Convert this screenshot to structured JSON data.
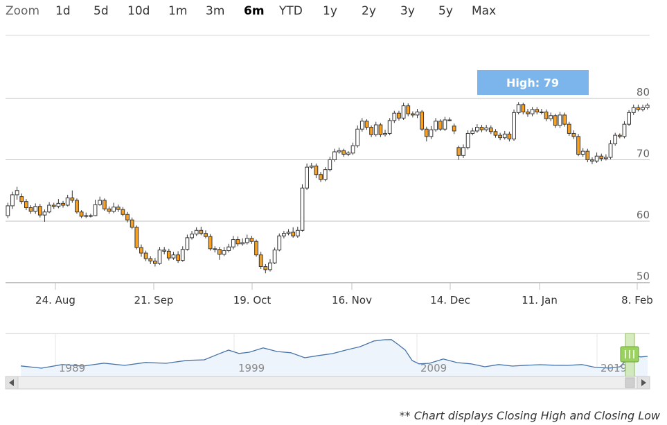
{
  "zoom": {
    "label": "Zoom",
    "buttons": [
      "1d",
      "5d",
      "10d",
      "1m",
      "3m",
      "6m",
      "YTD",
      "1y",
      "2y",
      "3y",
      "5y",
      "Max"
    ],
    "selected": "6m"
  },
  "tooltip": {
    "text": "High: 79"
  },
  "footnote": "** Chart displays Closing High and Closing Low",
  "chart_data": {
    "type": "candlestick",
    "x_ticks": [
      "24. Aug",
      "21. Sep",
      "19. Oct",
      "16. Nov",
      "14. Dec",
      "11. Jan",
      "8. Feb"
    ],
    "y_ticks": [
      50,
      60,
      70,
      80
    ],
    "ylim": [
      49.5,
      82
    ],
    "colors": {
      "up": "#ffffff",
      "down": "#f7a122",
      "line": "#333333",
      "grid": "#c0c0c0"
    },
    "candles": [
      [
        60.9,
        62.5,
        60.5,
        63.0
      ],
      [
        62.5,
        64.3,
        62.0,
        64.8
      ],
      [
        64.3,
        65.0,
        63.5,
        65.6
      ],
      [
        64.0,
        63.2,
        62.8,
        64.5
      ],
      [
        63.2,
        62.2,
        61.8,
        63.6
      ],
      [
        62.2,
        61.6,
        61.2,
        62.6
      ],
      [
        61.6,
        62.4,
        61.2,
        62.9
      ],
      [
        62.4,
        61.0,
        60.6,
        62.8
      ],
      [
        61.0,
        61.5,
        59.9,
        61.9
      ],
      [
        61.5,
        62.6,
        61.3,
        63.1
      ],
      [
        62.6,
        62.4,
        62.0,
        63.0
      ],
      [
        62.4,
        62.9,
        62.1,
        63.6
      ],
      [
        62.9,
        62.6,
        62.2,
        63.3
      ],
      [
        62.6,
        63.8,
        62.4,
        64.3
      ],
      [
        63.8,
        63.4,
        63.0,
        65.0
      ],
      [
        63.4,
        61.5,
        61.2,
        63.7
      ],
      [
        61.5,
        60.8,
        60.5,
        61.8
      ],
      [
        60.8,
        60.9,
        60.5,
        61.4
      ],
      [
        60.9,
        60.9,
        60.6,
        61.2
      ],
      [
        60.9,
        62.7,
        60.8,
        63.5
      ],
      [
        62.7,
        63.4,
        62.5,
        64.0
      ],
      [
        63.4,
        62.0,
        61.7,
        63.7
      ],
      [
        62.0,
        61.6,
        61.2,
        62.4
      ],
      [
        61.6,
        62.3,
        61.3,
        63.0
      ],
      [
        62.3,
        61.9,
        61.5,
        62.7
      ],
      [
        61.9,
        61.1,
        60.8,
        62.3
      ],
      [
        61.1,
        60.2,
        59.8,
        61.5
      ],
      [
        60.2,
        59.0,
        58.7,
        60.6
      ],
      [
        59.0,
        55.7,
        55.4,
        59.3
      ],
      [
        55.7,
        54.8,
        54.2,
        56.2
      ],
      [
        54.8,
        53.9,
        53.5,
        55.2
      ],
      [
        53.9,
        53.5,
        53.0,
        54.3
      ],
      [
        53.5,
        53.1,
        52.6,
        54.0
      ],
      [
        53.1,
        55.3,
        52.9,
        55.8
      ],
      [
        55.3,
        55.1,
        54.6,
        55.8
      ],
      [
        55.1,
        54.0,
        53.6,
        55.5
      ],
      [
        54.0,
        54.5,
        53.7,
        55.0
      ],
      [
        54.5,
        53.6,
        53.2,
        55.1
      ],
      [
        53.6,
        55.4,
        53.4,
        55.9
      ],
      [
        55.4,
        57.3,
        55.2,
        57.8
      ],
      [
        57.3,
        57.9,
        57.0,
        58.4
      ],
      [
        57.9,
        58.5,
        57.6,
        59.0
      ],
      [
        58.5,
        58.0,
        57.7,
        59.1
      ],
      [
        58.0,
        57.5,
        57.2,
        58.5
      ],
      [
        57.5,
        55.5,
        55.2,
        57.9
      ],
      [
        55.5,
        55.4,
        54.9,
        55.9
      ],
      [
        55.4,
        54.6,
        53.7,
        55.8
      ],
      [
        54.6,
        55.2,
        54.3,
        55.8
      ],
      [
        55.2,
        55.8,
        54.9,
        56.3
      ],
      [
        55.8,
        57.0,
        55.4,
        57.6
      ],
      [
        57.0,
        56.3,
        55.9,
        57.5
      ],
      [
        56.3,
        56.5,
        56.0,
        57.2
      ],
      [
        56.5,
        57.2,
        56.2,
        57.8
      ],
      [
        57.2,
        56.7,
        56.3,
        57.6
      ],
      [
        56.7,
        54.5,
        54.2,
        57.0
      ],
      [
        54.5,
        52.6,
        52.2,
        55.0
      ],
      [
        52.6,
        52.1,
        51.5,
        53.0
      ],
      [
        52.1,
        53.2,
        51.8,
        53.8
      ],
      [
        53.2,
        55.3,
        53.0,
        55.7
      ],
      [
        55.3,
        57.6,
        55.1,
        58.0
      ],
      [
        57.6,
        58.0,
        57.2,
        58.4
      ],
      [
        58.0,
        58.2,
        57.7,
        58.7
      ],
      [
        58.2,
        57.6,
        57.3,
        59.0
      ],
      [
        57.6,
        58.5,
        57.3,
        59.1
      ],
      [
        58.5,
        65.4,
        58.3,
        66.0
      ],
      [
        65.4,
        68.8,
        65.1,
        69.4
      ],
      [
        68.8,
        69.0,
        68.5,
        69.5
      ],
      [
        69.0,
        67.6,
        67.0,
        69.4
      ],
      [
        67.6,
        66.8,
        66.4,
        68.0
      ],
      [
        66.8,
        68.4,
        66.5,
        68.8
      ],
      [
        68.4,
        70.0,
        68.1,
        70.5
      ],
      [
        70.0,
        71.3,
        69.7,
        71.8
      ],
      [
        71.3,
        71.5,
        71.0,
        72.0
      ],
      [
        71.5,
        70.9,
        70.5,
        71.8
      ],
      [
        70.9,
        71.1,
        70.6,
        71.4
      ],
      [
        71.1,
        72.3,
        70.8,
        72.8
      ],
      [
        72.3,
        75.0,
        72.0,
        75.6
      ],
      [
        75.0,
        76.3,
        74.6,
        76.8
      ],
      [
        76.3,
        75.3,
        74.9,
        76.6
      ],
      [
        75.3,
        74.1,
        73.7,
        75.6
      ],
      [
        74.1,
        75.7,
        73.8,
        76.2
      ],
      [
        75.7,
        74.1,
        73.7,
        76.0
      ],
      [
        74.1,
        74.3,
        73.8,
        74.9
      ],
      [
        74.3,
        76.4,
        74.0,
        76.8
      ],
      [
        76.4,
        77.6,
        76.0,
        78.0
      ],
      [
        77.6,
        76.8,
        76.4,
        78.0
      ],
      [
        76.8,
        78.8,
        76.5,
        79.3
      ],
      [
        78.8,
        77.5,
        77.1,
        79.2
      ],
      [
        77.5,
        77.3,
        76.9,
        77.9
      ],
      [
        77.3,
        77.8,
        76.8,
        78.3
      ],
      [
        77.8,
        75.0,
        74.7,
        78.1
      ],
      [
        75.0,
        73.8,
        73.0,
        75.4
      ],
      [
        73.8,
        74.9,
        73.4,
        75.5
      ],
      [
        74.9,
        76.3,
        74.6,
        76.8
      ],
      [
        76.3,
        75.0,
        74.7,
        76.6
      ],
      [
        75.0,
        76.5,
        74.7,
        77.0
      ],
      [
        76.5,
        76.5,
        76.3,
        76.9
      ],
      [
        75.5,
        74.7,
        74.2,
        75.9
      ],
      [
        72.0,
        70.7,
        70.0,
        72.3
      ],
      [
        70.7,
        72.0,
        70.3,
        72.5
      ],
      [
        72.0,
        74.3,
        71.7,
        74.8
      ],
      [
        74.3,
        74.7,
        74.0,
        75.2
      ],
      [
        74.7,
        75.3,
        74.4,
        75.8
      ],
      [
        75.3,
        74.9,
        74.5,
        75.7
      ],
      [
        74.9,
        75.2,
        74.6,
        75.7
      ],
      [
        75.2,
        74.6,
        74.2,
        75.6
      ],
      [
        74.6,
        74.0,
        73.6,
        75.0
      ],
      [
        74.0,
        73.6,
        73.2,
        74.4
      ],
      [
        73.6,
        74.2,
        73.3,
        74.7
      ],
      [
        74.2,
        73.4,
        73.0,
        74.6
      ],
      [
        73.4,
        77.7,
        73.1,
        78.2
      ],
      [
        77.7,
        79.0,
        77.4,
        79.4
      ],
      [
        79.0,
        77.8,
        77.4,
        79.3
      ],
      [
        77.8,
        77.5,
        77.0,
        78.3
      ],
      [
        77.5,
        78.2,
        77.1,
        78.6
      ],
      [
        78.2,
        77.8,
        77.4,
        78.6
      ],
      [
        77.8,
        77.8,
        77.4,
        78.3
      ],
      [
        77.8,
        76.7,
        76.3,
        78.2
      ],
      [
        76.7,
        77.2,
        76.3,
        77.7
      ],
      [
        77.2,
        75.6,
        75.2,
        77.5
      ],
      [
        75.6,
        77.3,
        75.2,
        77.8
      ],
      [
        77.3,
        75.8,
        75.4,
        77.7
      ],
      [
        75.8,
        74.3,
        73.9,
        76.2
      ],
      [
        74.3,
        73.8,
        73.4,
        74.8
      ],
      [
        73.8,
        70.9,
        70.6,
        74.2
      ],
      [
        70.9,
        71.4,
        70.5,
        71.9
      ],
      [
        71.4,
        70.0,
        69.6,
        71.8
      ],
      [
        70.0,
        69.8,
        69.3,
        70.4
      ],
      [
        69.8,
        70.6,
        69.5,
        71.2
      ],
      [
        70.6,
        70.2,
        69.8,
        71.0
      ],
      [
        70.2,
        70.4,
        69.9,
        70.9
      ],
      [
        70.4,
        72.6,
        70.1,
        73.2
      ],
      [
        72.6,
        74.0,
        72.3,
        74.4
      ],
      [
        74.0,
        73.8,
        73.5,
        74.3
      ],
      [
        73.8,
        75.8,
        73.5,
        76.3
      ],
      [
        75.8,
        77.7,
        75.5,
        78.1
      ],
      [
        77.7,
        78.5,
        77.3,
        79.0
      ],
      [
        78.5,
        78.2,
        77.9,
        79.0
      ],
      [
        78.2,
        78.5,
        77.9,
        79.0
      ],
      [
        78.5,
        78.9,
        78.2,
        79.2
      ]
    ]
  },
  "navigator": {
    "labels": [
      "1989",
      "1999",
      "2009",
      "2019"
    ]
  }
}
